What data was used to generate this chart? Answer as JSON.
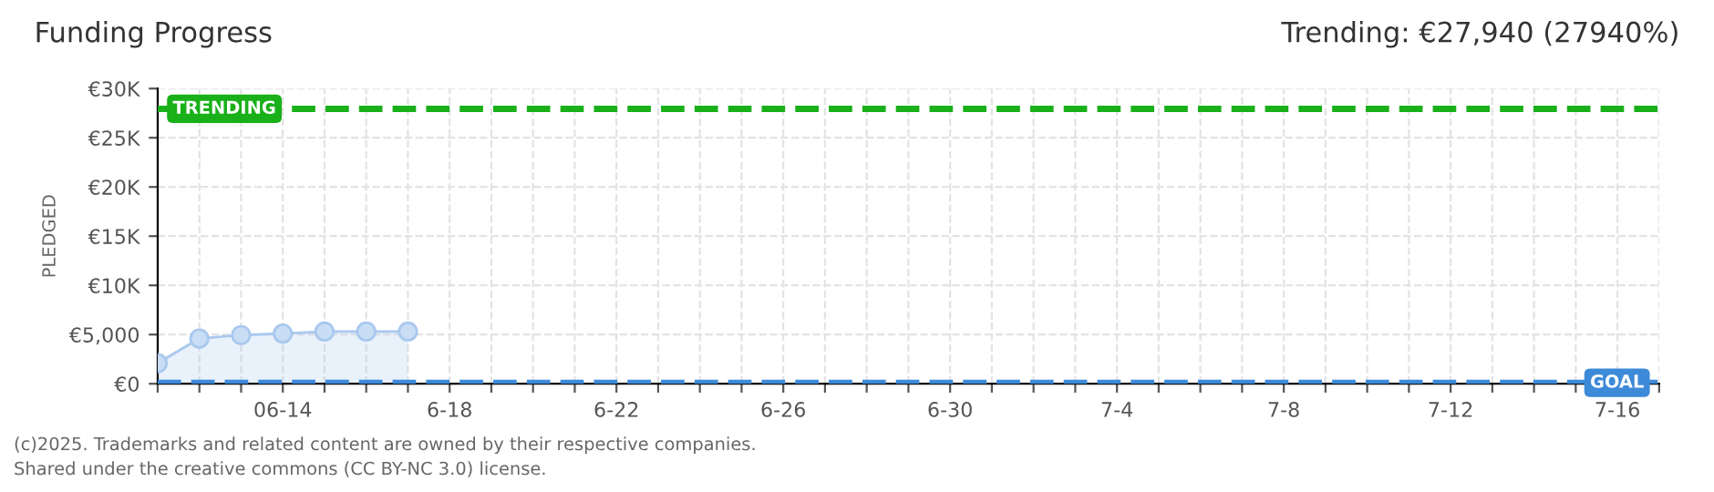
{
  "chart_data": {
    "type": "area",
    "title": "Funding Progress",
    "subtitle": "Trending: €27,940 (27940%)",
    "ylabel": "PLEDGED",
    "x": [
      "2025-06-11",
      "2025-06-12",
      "2025-06-13",
      "2025-06-14",
      "2025-06-15",
      "2025-06-16",
      "2025-06-17"
    ],
    "series": [
      {
        "color": "#a9c8ee",
        "values": [
          2100,
          4600,
          4950,
          5100,
          5300,
          5300,
          5300
        ]
      }
    ],
    "xlim": [
      "2025-06-11",
      "2025-07-17"
    ],
    "xticks": [
      {
        "value": "2025-06-11",
        "label": null
      },
      {
        "value": "2025-06-12",
        "label": null
      },
      {
        "value": "2025-06-13",
        "label": null
      },
      {
        "value": "2025-06-14",
        "label": "06-14"
      },
      {
        "value": "2025-06-15",
        "label": null
      },
      {
        "value": "2025-06-16",
        "label": null
      },
      {
        "value": "2025-06-17",
        "label": null
      },
      {
        "value": "2025-06-18",
        "label": "6-18"
      },
      {
        "value": "2025-06-19",
        "label": null
      },
      {
        "value": "2025-06-20",
        "label": null
      },
      {
        "value": "2025-06-21",
        "label": null
      },
      {
        "value": "2025-06-22",
        "label": "6-22"
      },
      {
        "value": "2025-06-23",
        "label": null
      },
      {
        "value": "2025-06-24",
        "label": null
      },
      {
        "value": "2025-06-25",
        "label": null
      },
      {
        "value": "2025-06-26",
        "label": "6-26"
      },
      {
        "value": "2025-06-27",
        "label": null
      },
      {
        "value": "2025-06-28",
        "label": null
      },
      {
        "value": "2025-06-29",
        "label": null
      },
      {
        "value": "2025-06-30",
        "label": "6-30"
      },
      {
        "value": "2025-07-01",
        "label": null
      },
      {
        "value": "2025-07-02",
        "label": null
      },
      {
        "value": "2025-07-03",
        "label": null
      },
      {
        "value": "2025-07-04",
        "label": "7-4"
      },
      {
        "value": "2025-07-05",
        "label": null
      },
      {
        "value": "2025-07-06",
        "label": null
      },
      {
        "value": "2025-07-07",
        "label": null
      },
      {
        "value": "2025-07-08",
        "label": "7-8"
      },
      {
        "value": "2025-07-09",
        "label": null
      },
      {
        "value": "2025-07-10",
        "label": null
      },
      {
        "value": "2025-07-11",
        "label": null
      },
      {
        "value": "2025-07-12",
        "label": "7-12"
      },
      {
        "value": "2025-07-13",
        "label": null
      },
      {
        "value": "2025-07-14",
        "label": null
      },
      {
        "value": "2025-07-15",
        "label": null
      },
      {
        "value": "2025-07-16",
        "label": "7-16"
      },
      {
        "value": "2025-07-17",
        "label": null
      }
    ],
    "ylim": [
      0,
      30000
    ],
    "yticks": [
      {
        "value": 0,
        "label": "€0"
      },
      {
        "value": 5000,
        "label": "€5,000"
      },
      {
        "value": 10000,
        "label": "€10K"
      },
      {
        "value": 15000,
        "label": "€15K"
      },
      {
        "value": 20000,
        "label": "€20K"
      },
      {
        "value": 25000,
        "label": "€25K"
      },
      {
        "value": 30000,
        "label": "€30K"
      }
    ],
    "ref_lines": [
      {
        "axis": "y",
        "value": 27940,
        "label": "TRENDING",
        "color": "#19b01a",
        "line_style": "dashed"
      },
      {
        "axis": "y",
        "value": 100,
        "label": "GOAL",
        "color": "#3d8ad8",
        "line_style": "dashed"
      }
    ],
    "grid": true,
    "marker": "circle",
    "line_style": "solid",
    "annotations": [
      "(c)2025. Trademarks and related content are owned by their respective companies.",
      "Shared under the creative commons (CC BY-NC 3.0) license."
    ]
  }
}
